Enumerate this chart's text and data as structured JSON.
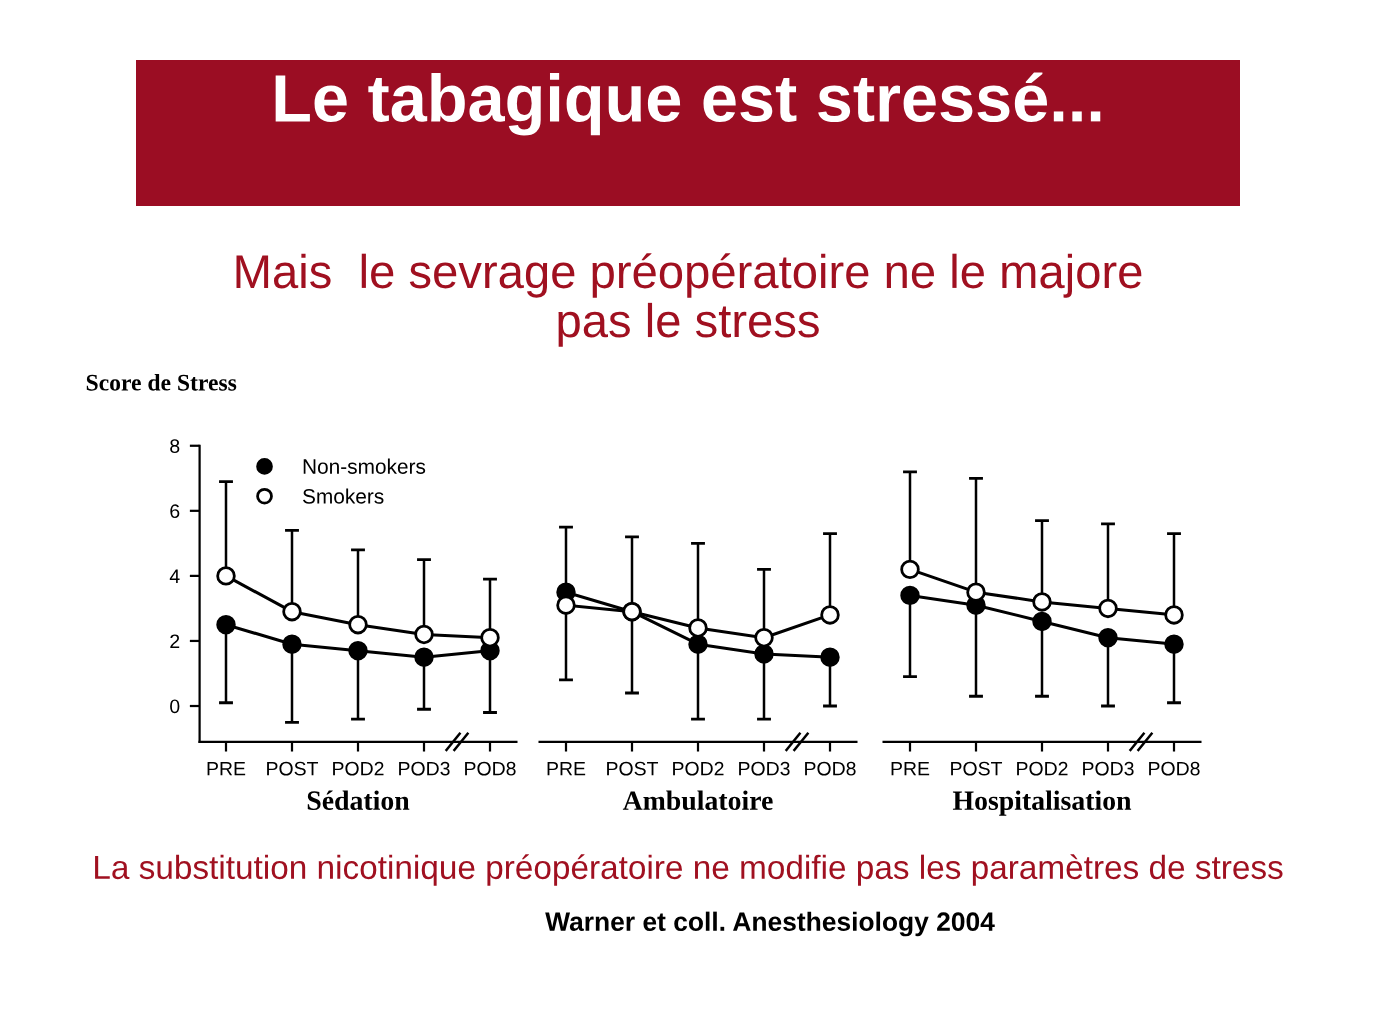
{
  "chart_data": [
    {
      "type": "line",
      "title": "Le tabagique est stressé...",
      "subtitle": "Mais  le sevrage préopératoire ne le majore\npas le stress",
      "ylabel": "Score de Stress",
      "xlabel": "Sédation",
      "annotations": [
        "La substitution nicotinique préopératoire ne modifie pas les paramètres de stress",
        "Warner et coll. Anesthesiology 2004"
      ],
      "categories": [
        "PRE",
        "POST",
        "POD2",
        "POD3",
        "POD8"
      ],
      "ylim": [
        -1.1,
        8
      ],
      "yticks": [
        0,
        2,
        4,
        6,
        8
      ],
      "legend": "top left",
      "marker": "circle",
      "series": [
        {
          "name": "Non-smokers",
          "color": "#000000",
          "values": [
            2.5,
            1.9,
            1.7,
            1.5,
            1.7
          ],
          "errors": [
            [
              0.1,
              2.5
            ],
            [
              -0.5,
              1.9
            ],
            [
              -0.4,
              1.7
            ],
            [
              -0.1,
              1.5
            ],
            [
              -0.2,
              1.7
            ]
          ]
        },
        {
          "name": "Smokers",
          "color": "#ffffff",
          "values": [
            4.0,
            2.9,
            2.5,
            2.2,
            2.1
          ],
          "errors": [
            [
              4.0,
              6.9
            ],
            [
              2.9,
              5.4
            ],
            [
              2.5,
              4.8
            ],
            [
              2.2,
              4.5
            ],
            [
              2.1,
              3.9
            ]
          ]
        }
      ]
    },
    {
      "type": "line",
      "xlabel": "Ambulatoire",
      "categories": [
        "PRE",
        "POST",
        "POD2",
        "POD3",
        "POD8"
      ],
      "ylim": [
        -1.1,
        8
      ],
      "tick_labels": "x",
      "marker": "circle",
      "series": [
        {
          "color": "#000000",
          "values": [
            3.5,
            2.9,
            1.9,
            1.6,
            1.5
          ],
          "errors": [
            [
              0.8,
              3.5
            ],
            [
              0.4,
              2.9
            ],
            [
              -0.4,
              1.9
            ],
            [
              -0.4,
              1.6
            ],
            [
              0.0,
              1.5
            ]
          ]
        },
        {
          "color": "#ffffff",
          "values": [
            3.1,
            2.9,
            2.4,
            2.1,
            2.8
          ],
          "errors": [
            [
              3.1,
              5.5
            ],
            [
              2.9,
              5.2
            ],
            [
              2.4,
              5.0
            ],
            [
              2.1,
              4.2
            ],
            [
              2.8,
              5.3
            ]
          ]
        }
      ]
    },
    {
      "type": "line",
      "xlabel": "Hospitalisation",
      "categories": [
        "PRE",
        "POST",
        "POD2",
        "POD3",
        "POD8"
      ],
      "ylim": [
        -1.1,
        8
      ],
      "tick_labels": "x",
      "marker": "circle",
      "series": [
        {
          "color": "#000000",
          "values": [
            3.4,
            3.1,
            2.6,
            2.1,
            1.9
          ],
          "errors": [
            [
              0.9,
              3.4
            ],
            [
              0.3,
              3.1
            ],
            [
              0.3,
              2.6
            ],
            [
              0.0,
              2.1
            ],
            [
              0.1,
              1.9
            ]
          ]
        },
        {
          "color": "#ffffff",
          "values": [
            4.2,
            3.5,
            3.2,
            3.0,
            2.8
          ],
          "errors": [
            [
              4.2,
              7.2
            ],
            [
              3.5,
              7.0
            ],
            [
              3.2,
              5.7
            ],
            [
              3.0,
              5.6
            ],
            [
              2.8,
              5.3
            ]
          ]
        }
      ]
    }
  ]
}
